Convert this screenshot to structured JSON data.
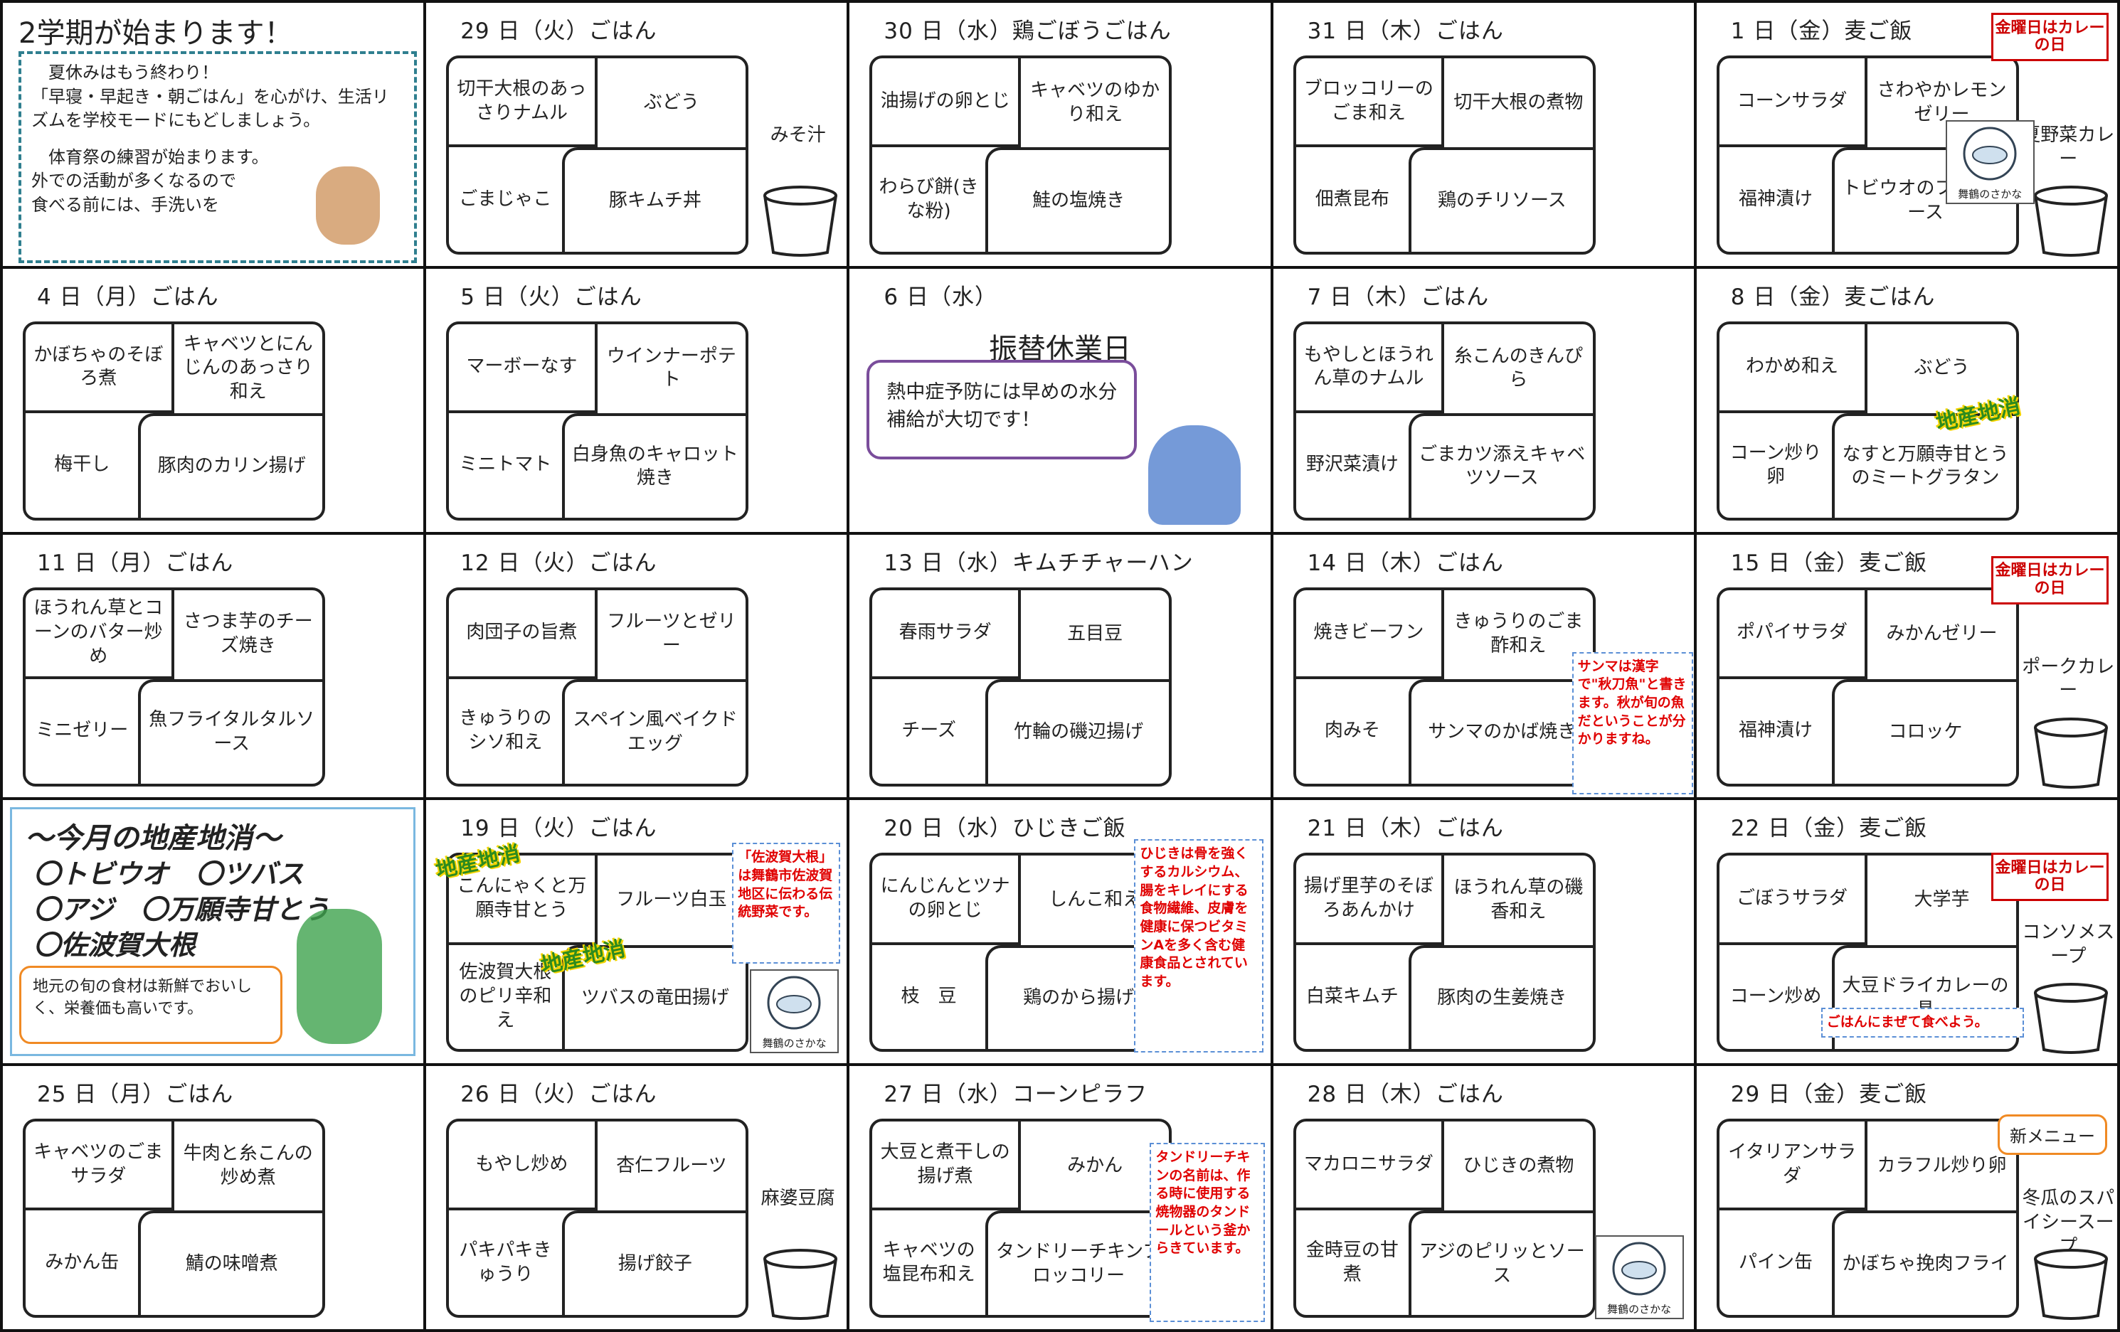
{
  "cells": [
    {
      "title": "2学期が始まります！",
      "lines": [
        "夏休みはもう終わり！",
        "「早寝・早起き・朝ごはん」を心がけ、生活リズムを学校モードにもどしましょう。",
        "体育祭の練習が始まります。",
        "外での活動が多くなるので",
        "食べる前には、手洗いを"
      ]
    },
    {
      "header": "29 日（火）ごはん",
      "dishes": [
        "切干大根のあっさりナムル",
        "ぶどう",
        "ごまじゃこ",
        "豚キムチ丼"
      ],
      "side": "みそ汁"
    },
    {
      "header": "30 日（水）鶏ごぼうごはん",
      "dishes": [
        "油揚げの卵とじ",
        "キャベツのゆかり和え",
        "わらび餅(きな粉)",
        "鮭の塩焼き"
      ]
    },
    {
      "header": "31 日（木）ごはん",
      "dishes": [
        "ブロッコリーのごま和え",
        "切干大根の煮物",
        "佃煮昆布",
        "鶏のチリソース"
      ]
    },
    {
      "header": "1 日（金）麦ご飯",
      "dishes": [
        "コーンサラダ",
        "さわやかレモンゼリー",
        "福神漬け",
        "トビウオのフライソース"
      ],
      "side": "夏野菜カレー",
      "badge": "金曜日はカレーの日",
      "logo": "舞鶴のさかな"
    },
    {
      "header": "4 日（月）ごはん",
      "dishes": [
        "かぼちゃのそぼろ煮",
        "キャベツとにんじんのあっさり和え",
        "梅干し",
        "豚肉のカリン揚げ"
      ]
    },
    {
      "header": "5 日（火）ごはん",
      "dishes": [
        "マーボーなす",
        "ウインナーポテト",
        "ミニトマト",
        "白身魚のキャロット焼き"
      ]
    },
    {
      "header": "6 日（水）",
      "title": "振替休業日",
      "bubble": "熱中症予防には早めの水分補給が大切です！"
    },
    {
      "header": "7 日（木）ごはん",
      "dishes": [
        "もやしとほうれん草のナムル",
        "糸こんのきんぴら",
        "野沢菜漬け",
        "ごまカツ添えキャベツソース"
      ]
    },
    {
      "header": "8 日（金）麦ごはん",
      "dishes": [
        "わかめ和え",
        "ぶどう",
        "コーン炒り卵",
        "なすと万願寺甘とうのミートグラタン"
      ],
      "stickers": [
        "地産地消"
      ]
    },
    {
      "header": "11 日（月）ごはん",
      "dishes": [
        "ほうれん草とコーンのバター炒め",
        "さつま芋のチーズ焼き",
        "ミニゼリー",
        "魚フライタルタルソース"
      ]
    },
    {
      "header": "12 日（火）ごはん",
      "dishes": [
        "肉団子の旨煮",
        "フルーツとゼリー",
        "きゅうりのシソ和え",
        "スペイン風ベイクドエッグ"
      ]
    },
    {
      "header": "13 日（水）キムチチャーハン",
      "dishes": [
        "春雨サラダ",
        "五目豆",
        "チーズ",
        "竹輪の磯辺揚げ"
      ]
    },
    {
      "header": "14 日（木）ごはん",
      "dishes": [
        "焼きビーフン",
        "きゅうりのごま酢和え",
        "肉みそ",
        "サンマのかば焼き"
      ],
      "note": "サンマは漢字で\"秋刀魚\"と書きます。秋が旬の魚だということが分かりますね。"
    },
    {
      "header": "15 日（金）麦ご飯",
      "dishes": [
        "ポパイサラダ",
        "みかんゼリー",
        "福神漬け",
        "コロッケ"
      ],
      "side": "ポークカレー",
      "badge": "金曜日はカレーの日"
    },
    {
      "title": "～今月の地産地消～",
      "items": [
        "〇トビウオ　〇ツバス",
        "〇アジ　〇万願寺甘とう",
        "〇佐波賀大根"
      ],
      "bubble": "地元の旬の食材は新鮮でおいしく、栄養価も高いです。"
    },
    {
      "header": "19 日（火）ごはん",
      "dishes": [
        "こんにゃくと万願寺甘とう",
        "フルーツ白玉",
        "佐波賀大根のピリ辛和え",
        "ツバスの竜田揚げ"
      ],
      "note": "「佐波賀大根」は舞鶴市佐波賀地区に伝わる伝統野菜です。",
      "stickers": [
        "地産地消",
        "地産地消"
      ],
      "logo": "舞鶴のさかな"
    },
    {
      "header": "20 日（水）ひじきご飯",
      "dishes": [
        "にんじんとツナの卵とじ",
        "しんこ和え",
        "枝　豆",
        "鶏のから揚げ"
      ],
      "note": "ひじきは骨を強くするカルシウム、腸をキレイにする食物繊維、皮膚を健康に保つビタミンAを多く含む健康食品とされています。"
    },
    {
      "header": "21 日（木）ごはん",
      "dishes": [
        "揚げ里芋のそぼろあんかけ",
        "ほうれん草の磯香和え",
        "白菜キムチ",
        "豚肉の生姜焼き"
      ]
    },
    {
      "header": "22 日（金）麦ご飯",
      "dishes": [
        "ごぼうサラダ",
        "大学芋",
        "コーン炒め",
        "大豆ドライカレーの具"
      ],
      "side": "コンソメスープ",
      "note": "ごはんにまぜて食べよう。",
      "badge": "金曜日はカレーの日"
    },
    {
      "header": "25 日（月）ごはん",
      "dishes": [
        "キャベツのごまサラダ",
        "牛肉と糸こんの炒め煮",
        "みかん缶",
        "鯖の味噌煮"
      ]
    },
    {
      "header": "26 日（火）ごはん",
      "dishes": [
        "もやし炒め",
        "杏仁フルーツ",
        "パキパキきゅうり",
        "揚げ餃子"
      ],
      "side": "麻婆豆腐"
    },
    {
      "header": "27 日（水）コーンピラフ",
      "dishes": [
        "大豆と煮干しの揚げ煮",
        "みかん",
        "キャベツの塩昆布和え",
        "タンドリーチキンブロッコリー"
      ],
      "note": "タンドリーチキンの名前は、作る時に使用する焼物器のタンドールという釜からきています。"
    },
    {
      "header": "28 日（木）ごはん",
      "dishes": [
        "マカロニサラダ",
        "ひじきの煮物",
        "金時豆の甘煮",
        "アジのピリッとソース"
      ],
      "logo": "舞鶴のさかな"
    },
    {
      "header": "29 日（金）麦ご飯",
      "dishes": [
        "イタリアンサラダ",
        "カラフル炒り卵",
        "パイン缶",
        "かぼちゃ挽肉フライ"
      ],
      "side": "冬瓜のスパイシースープ",
      "tag": "新メニュー"
    }
  ]
}
